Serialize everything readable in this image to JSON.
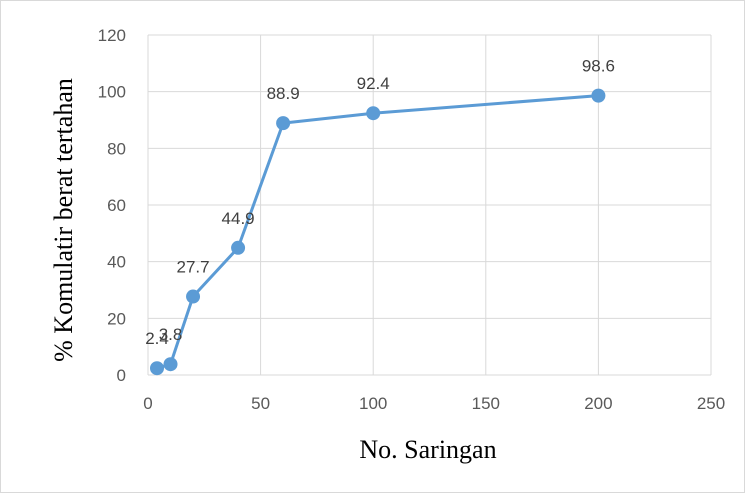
{
  "chart_data": {
    "type": "scatter",
    "title": "",
    "xlabel": "No. Saringan",
    "ylabel": "% Komulatir berat tertahan",
    "xlim": [
      0,
      250
    ],
    "ylim": [
      0,
      120
    ],
    "x_ticks": [
      "0",
      "50",
      "100",
      "150",
      "200",
      "250"
    ],
    "y_ticks": [
      "0",
      "20",
      "40",
      "60",
      "80",
      "100",
      "120"
    ],
    "grid": true,
    "legend": "none",
    "series_color": "#5b9bd5",
    "series": [
      {
        "x": [
          4,
          10,
          20,
          40,
          60,
          100,
          200
        ],
        "values": [
          2.4,
          3.8,
          27.7,
          44.9,
          88.9,
          92.4,
          98.6
        ],
        "labels": [
          "2.4",
          "3.8",
          "27.7",
          "44.9",
          "88.9",
          "92.4",
          "98.6"
        ]
      }
    ]
  }
}
